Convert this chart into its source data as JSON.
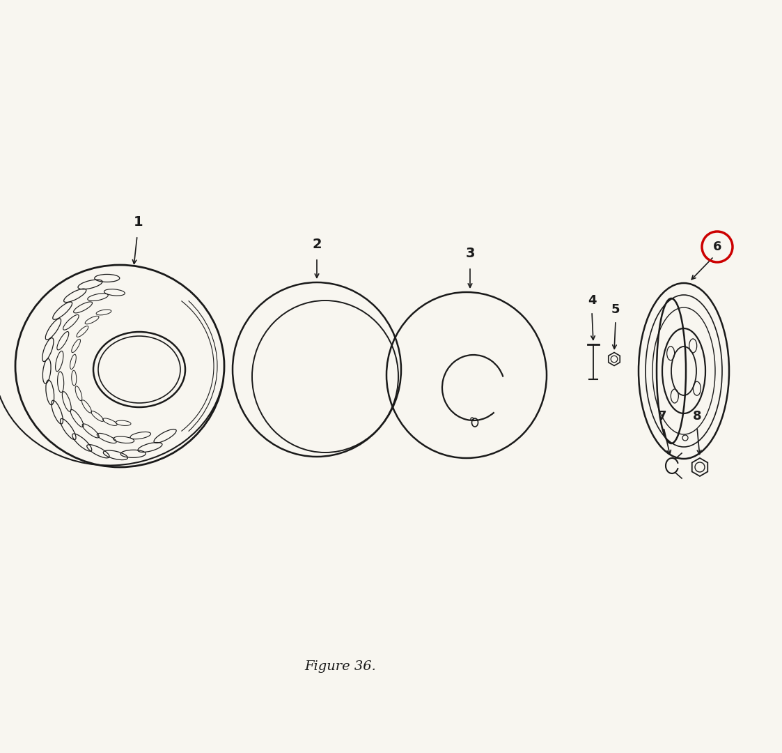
{
  "bg_color": "#f8f6f0",
  "line_color": "#1a1a1a",
  "red_circle_color": "#cc0000",
  "figure_caption": "Figure 36.",
  "caption_fx": 0.435,
  "caption_fy": 0.115,
  "labels": [
    "1",
    "2",
    "3",
    "4",
    "5",
    "6",
    "7",
    "8"
  ]
}
